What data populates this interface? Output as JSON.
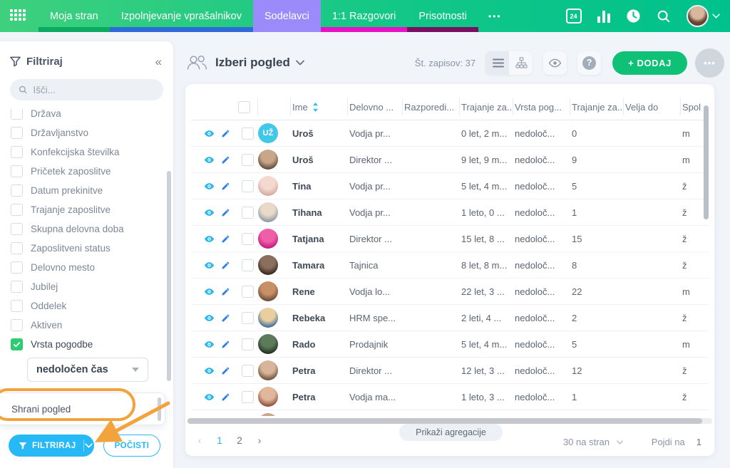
{
  "colors": {
    "nav_green_1": "#3ed07d",
    "nav_green_2": "#00c18c",
    "active_tab_purple": "#9b8afa",
    "accent_cyan": "#27b9f5",
    "accent_green": "#0fc176",
    "checked_green": "#2ecc71",
    "annotation_orange": "#f3a33b",
    "row_eye_cyan": "#29b6e8",
    "row_pencil_blue": "#2f80ed"
  },
  "nav": {
    "calendar_label": "24",
    "tabs": [
      {
        "label": "Moja stran",
        "underline": "#0caa60",
        "active": false
      },
      {
        "label": "Izpolnjevanje vprašalnikov",
        "underline": "#2d6bd9",
        "active": false
      },
      {
        "label": "Sodelavci",
        "underline": null,
        "active": true
      },
      {
        "label": "1:1 Razgovori",
        "underline": "#e812c4",
        "active": false
      },
      {
        "label": "Prisotnosti",
        "underline": "#7a1061",
        "active": false
      },
      {
        "label": "•••",
        "underline": null,
        "active": false,
        "more": true
      }
    ]
  },
  "sidebar": {
    "title": "Filtriraj",
    "search_placeholder": "Išči...",
    "filters": [
      {
        "label": "Država",
        "checked": false
      },
      {
        "label": "Državljanstvo",
        "checked": false
      },
      {
        "label": "Konfekcijska številka",
        "checked": false
      },
      {
        "label": "Pričetek zaposlitve",
        "checked": false
      },
      {
        "label": "Datum prekinitve",
        "checked": false
      },
      {
        "label": "Trajanje zaposlitve",
        "checked": false
      },
      {
        "label": "Skupna delovna doba",
        "checked": false
      },
      {
        "label": "Zaposlitveni status",
        "checked": false
      },
      {
        "label": "Delovno mesto",
        "checked": false
      },
      {
        "label": "Jubilej",
        "checked": false
      },
      {
        "label": "Oddelek",
        "checked": false
      },
      {
        "label": "Aktiven",
        "checked": false
      },
      {
        "label": "Vrsta pogodbe",
        "checked": true
      }
    ],
    "contract_select_value": "nedoločen čas",
    "save_view_label": "Shrani pogled",
    "filter_button": "FILTRIRAJ",
    "clear_button": "POČISTI"
  },
  "main": {
    "view_title": "Izberi pogled",
    "records_label": "Št. zapisov: 37",
    "add_button": "+ DODAJ",
    "toolbar": {
      "help_glyph": "?",
      "more_glyph": "•••"
    },
    "table": {
      "columns": [
        {
          "label": ""
        },
        {
          "label": "",
          "checkbox": true
        },
        {
          "label": ""
        },
        {
          "label": "Ime",
          "sort": true
        },
        {
          "label": "Delovno ..."
        },
        {
          "label": "Razporedi..."
        },
        {
          "label": "Trajanje za..."
        },
        {
          "label": "Vrsta pog..."
        },
        {
          "label": "Trajanje za..."
        },
        {
          "label": "Velja do"
        },
        {
          "label": "Spol"
        }
      ],
      "rows": [
        {
          "avatar": {
            "type": "initials",
            "text": "UŽ",
            "color": "#41c7e8"
          },
          "name": "Uroš",
          "position": "Vodja pr...",
          "assignment": "",
          "duration_total": "0 let, 2 m...",
          "contract_type": "nedoloč...",
          "duration_years": "0",
          "valid_until": "",
          "gender": "m"
        },
        {
          "avatar": {
            "type": "photo",
            "c1": "#c9a689",
            "c2": "#5e4a3a"
          },
          "name": "Uroš",
          "position": "Direktor ...",
          "assignment": "",
          "duration_total": "9 let, 9 m...",
          "contract_type": "nedoloč...",
          "duration_years": "9",
          "valid_until": "",
          "gender": "m"
        },
        {
          "avatar": {
            "type": "photo",
            "c1": "#f3d9cf",
            "c2": "#d7a8a0"
          },
          "name": "Tina",
          "position": "Vodja pr...",
          "assignment": "",
          "duration_total": "5 let, 4 m...",
          "contract_type": "nedoloč...",
          "duration_years": "5",
          "valid_until": "",
          "gender": "ž"
        },
        {
          "avatar": {
            "type": "photo",
            "c1": "#e8d9c8",
            "c2": "#8d9aa5"
          },
          "name": "Tihana",
          "position": "Vodja pr...",
          "assignment": "",
          "duration_total": "1 leto, 0 ...",
          "contract_type": "nedoloč...",
          "duration_years": "1",
          "valid_until": "",
          "gender": "ž"
        },
        {
          "avatar": {
            "type": "photo",
            "c1": "#ef5fa7",
            "c2": "#c2187e"
          },
          "name": "Tatjana",
          "position": "Direktor ...",
          "assignment": "",
          "duration_total": "15 let, 8 ...",
          "contract_type": "nedoloč...",
          "duration_years": "15",
          "valid_until": "",
          "gender": "ž"
        },
        {
          "avatar": {
            "type": "photo",
            "c1": "#8a6e5e",
            "c2": "#35261e"
          },
          "name": "Tamara",
          "position": "Tajnica",
          "assignment": "",
          "duration_total": "8 let, 8 m...",
          "contract_type": "nedoloč...",
          "duration_years": "8",
          "valid_until": "",
          "gender": "ž"
        },
        {
          "avatar": {
            "type": "photo",
            "c1": "#c79067",
            "c2": "#6b4a33"
          },
          "name": "Rene",
          "position": "Vodja lo...",
          "assignment": "",
          "duration_total": "22 let, 3 ...",
          "contract_type": "nedoloč...",
          "duration_years": "22",
          "valid_until": "",
          "gender": "m"
        },
        {
          "avatar": {
            "type": "photo",
            "c1": "#e9cfa0",
            "c2": "#3c6e9e"
          },
          "name": "Rebeka",
          "position": "HRM spe...",
          "assignment": "",
          "duration_total": "2 leti, 4 ...",
          "contract_type": "nedoloč...",
          "duration_years": "2",
          "valid_until": "",
          "gender": "ž"
        },
        {
          "avatar": {
            "type": "photo",
            "c1": "#5d7a5a",
            "c2": "#22301f"
          },
          "name": "Rado",
          "position": "Prodajnik",
          "assignment": "",
          "duration_total": "5 let, 4 m...",
          "contract_type": "nedoloč...",
          "duration_years": "5",
          "valid_until": "",
          "gender": "m"
        },
        {
          "avatar": {
            "type": "photo",
            "c1": "#d7b49a",
            "c2": "#6e4f3c"
          },
          "name": "Petra",
          "position": "Direktor ...",
          "assignment": "",
          "duration_total": "12 let, 3 ...",
          "contract_type": "nedoloč...",
          "duration_years": "12",
          "valid_until": "",
          "gender": "ž"
        },
        {
          "avatar": {
            "type": "photo",
            "c1": "#e0b79b",
            "c2": "#8c4f3a"
          },
          "name": "Petra",
          "position": "Vodja ma...",
          "assignment": "",
          "duration_total": "1 leto, 3 ...",
          "contract_type": "nedoloč...",
          "duration_years": "1",
          "valid_until": "",
          "gender": "ž"
        }
      ],
      "partial_row": {
        "avatar": {
          "type": "photo",
          "c1": "#c9a689",
          "c2": "#6e4f3c"
        }
      }
    },
    "footer": {
      "pagination": [
        {
          "label": "‹",
          "kind": "prev",
          "active": false
        },
        {
          "label": "1",
          "kind": "page",
          "active": true
        },
        {
          "label": "2",
          "kind": "page",
          "active": false
        },
        {
          "label": "›",
          "kind": "next",
          "active": false
        }
      ],
      "aggregations_button": "Prikaži agregacije",
      "per_page": "30 na stran",
      "goto_label": "Pojdi na",
      "goto_value": "1"
    }
  }
}
